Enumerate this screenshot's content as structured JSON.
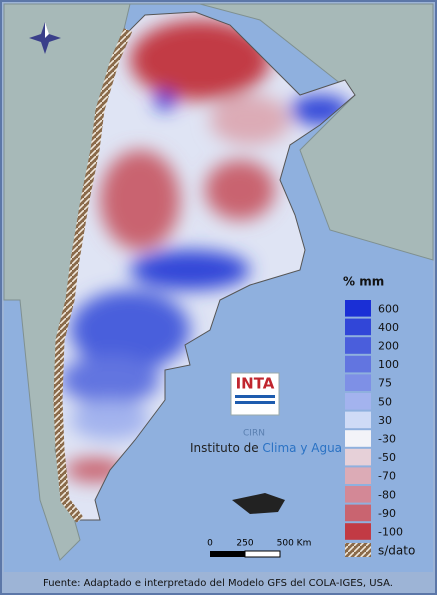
{
  "legend": {
    "title": "% mm",
    "items": [
      {
        "label": "600",
        "color": "#1a2fd6"
      },
      {
        "label": "400",
        "color": "#3146d8"
      },
      {
        "label": "200",
        "color": "#4a5edc"
      },
      {
        "label": "100",
        "color": "#6275e0"
      },
      {
        "label": "75",
        "color": "#7e90e6"
      },
      {
        "label": "50",
        "color": "#a3b3ee"
      },
      {
        "label": "30",
        "color": "#cfdbf6"
      },
      {
        "label": "-30",
        "color": "#f3f3f8"
      },
      {
        "label": "-50",
        "color": "#e6d0d8"
      },
      {
        "label": "-70",
        "color": "#dcabb6"
      },
      {
        "label": "-80",
        "color": "#d38896"
      },
      {
        "label": "-90",
        "color": "#c96470"
      },
      {
        "label": "-100",
        "color": "#c23a44"
      }
    ],
    "no_data": "s/dato"
  },
  "logo": {
    "name": "INTA",
    "center": "CIRN",
    "institute": "Instituto de ",
    "institute_highlight": "Clima y Agua"
  },
  "scale_bar": {
    "labels": [
      "0",
      "250",
      "500 Km"
    ]
  },
  "footer": "Fuente: Adaptado e interpretado del Modelo GFS del COLA-IGES, USA."
}
